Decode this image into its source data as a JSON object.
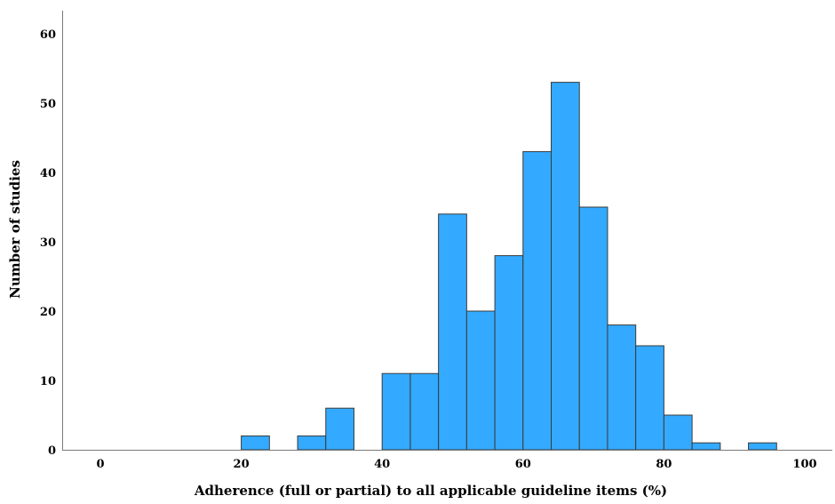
{
  "chart_data": {
    "type": "bar",
    "xlabel": "Adherence (full or partial) to all applicable guideline items (%)",
    "ylabel": "Number of studies",
    "xlim": [
      -4,
      104
    ],
    "ylim": [
      0,
      62
    ],
    "xticks": [
      0,
      20,
      40,
      60,
      80,
      100
    ],
    "yticks": [
      0,
      10,
      20,
      30,
      40,
      50,
      60
    ],
    "bin_width": 4,
    "bins": [
      {
        "start": 20,
        "count": 2
      },
      {
        "start": 28,
        "count": 2
      },
      {
        "start": 32,
        "count": 6
      },
      {
        "start": 40,
        "count": 11
      },
      {
        "start": 44,
        "count": 11
      },
      {
        "start": 48,
        "count": 34
      },
      {
        "start": 52,
        "count": 20
      },
      {
        "start": 56,
        "count": 28
      },
      {
        "start": 60,
        "count": 43
      },
      {
        "start": 64,
        "count": 53
      },
      {
        "start": 68,
        "count": 35
      },
      {
        "start": 72,
        "count": 18
      },
      {
        "start": 76,
        "count": 15
      },
      {
        "start": 80,
        "count": 5
      },
      {
        "start": 84,
        "count": 1
      },
      {
        "start": 92,
        "count": 1
      }
    ],
    "grid": false,
    "legend": "none",
    "bar_color": "#33aaff",
    "bar_edge_color": "#3a3a3a"
  }
}
